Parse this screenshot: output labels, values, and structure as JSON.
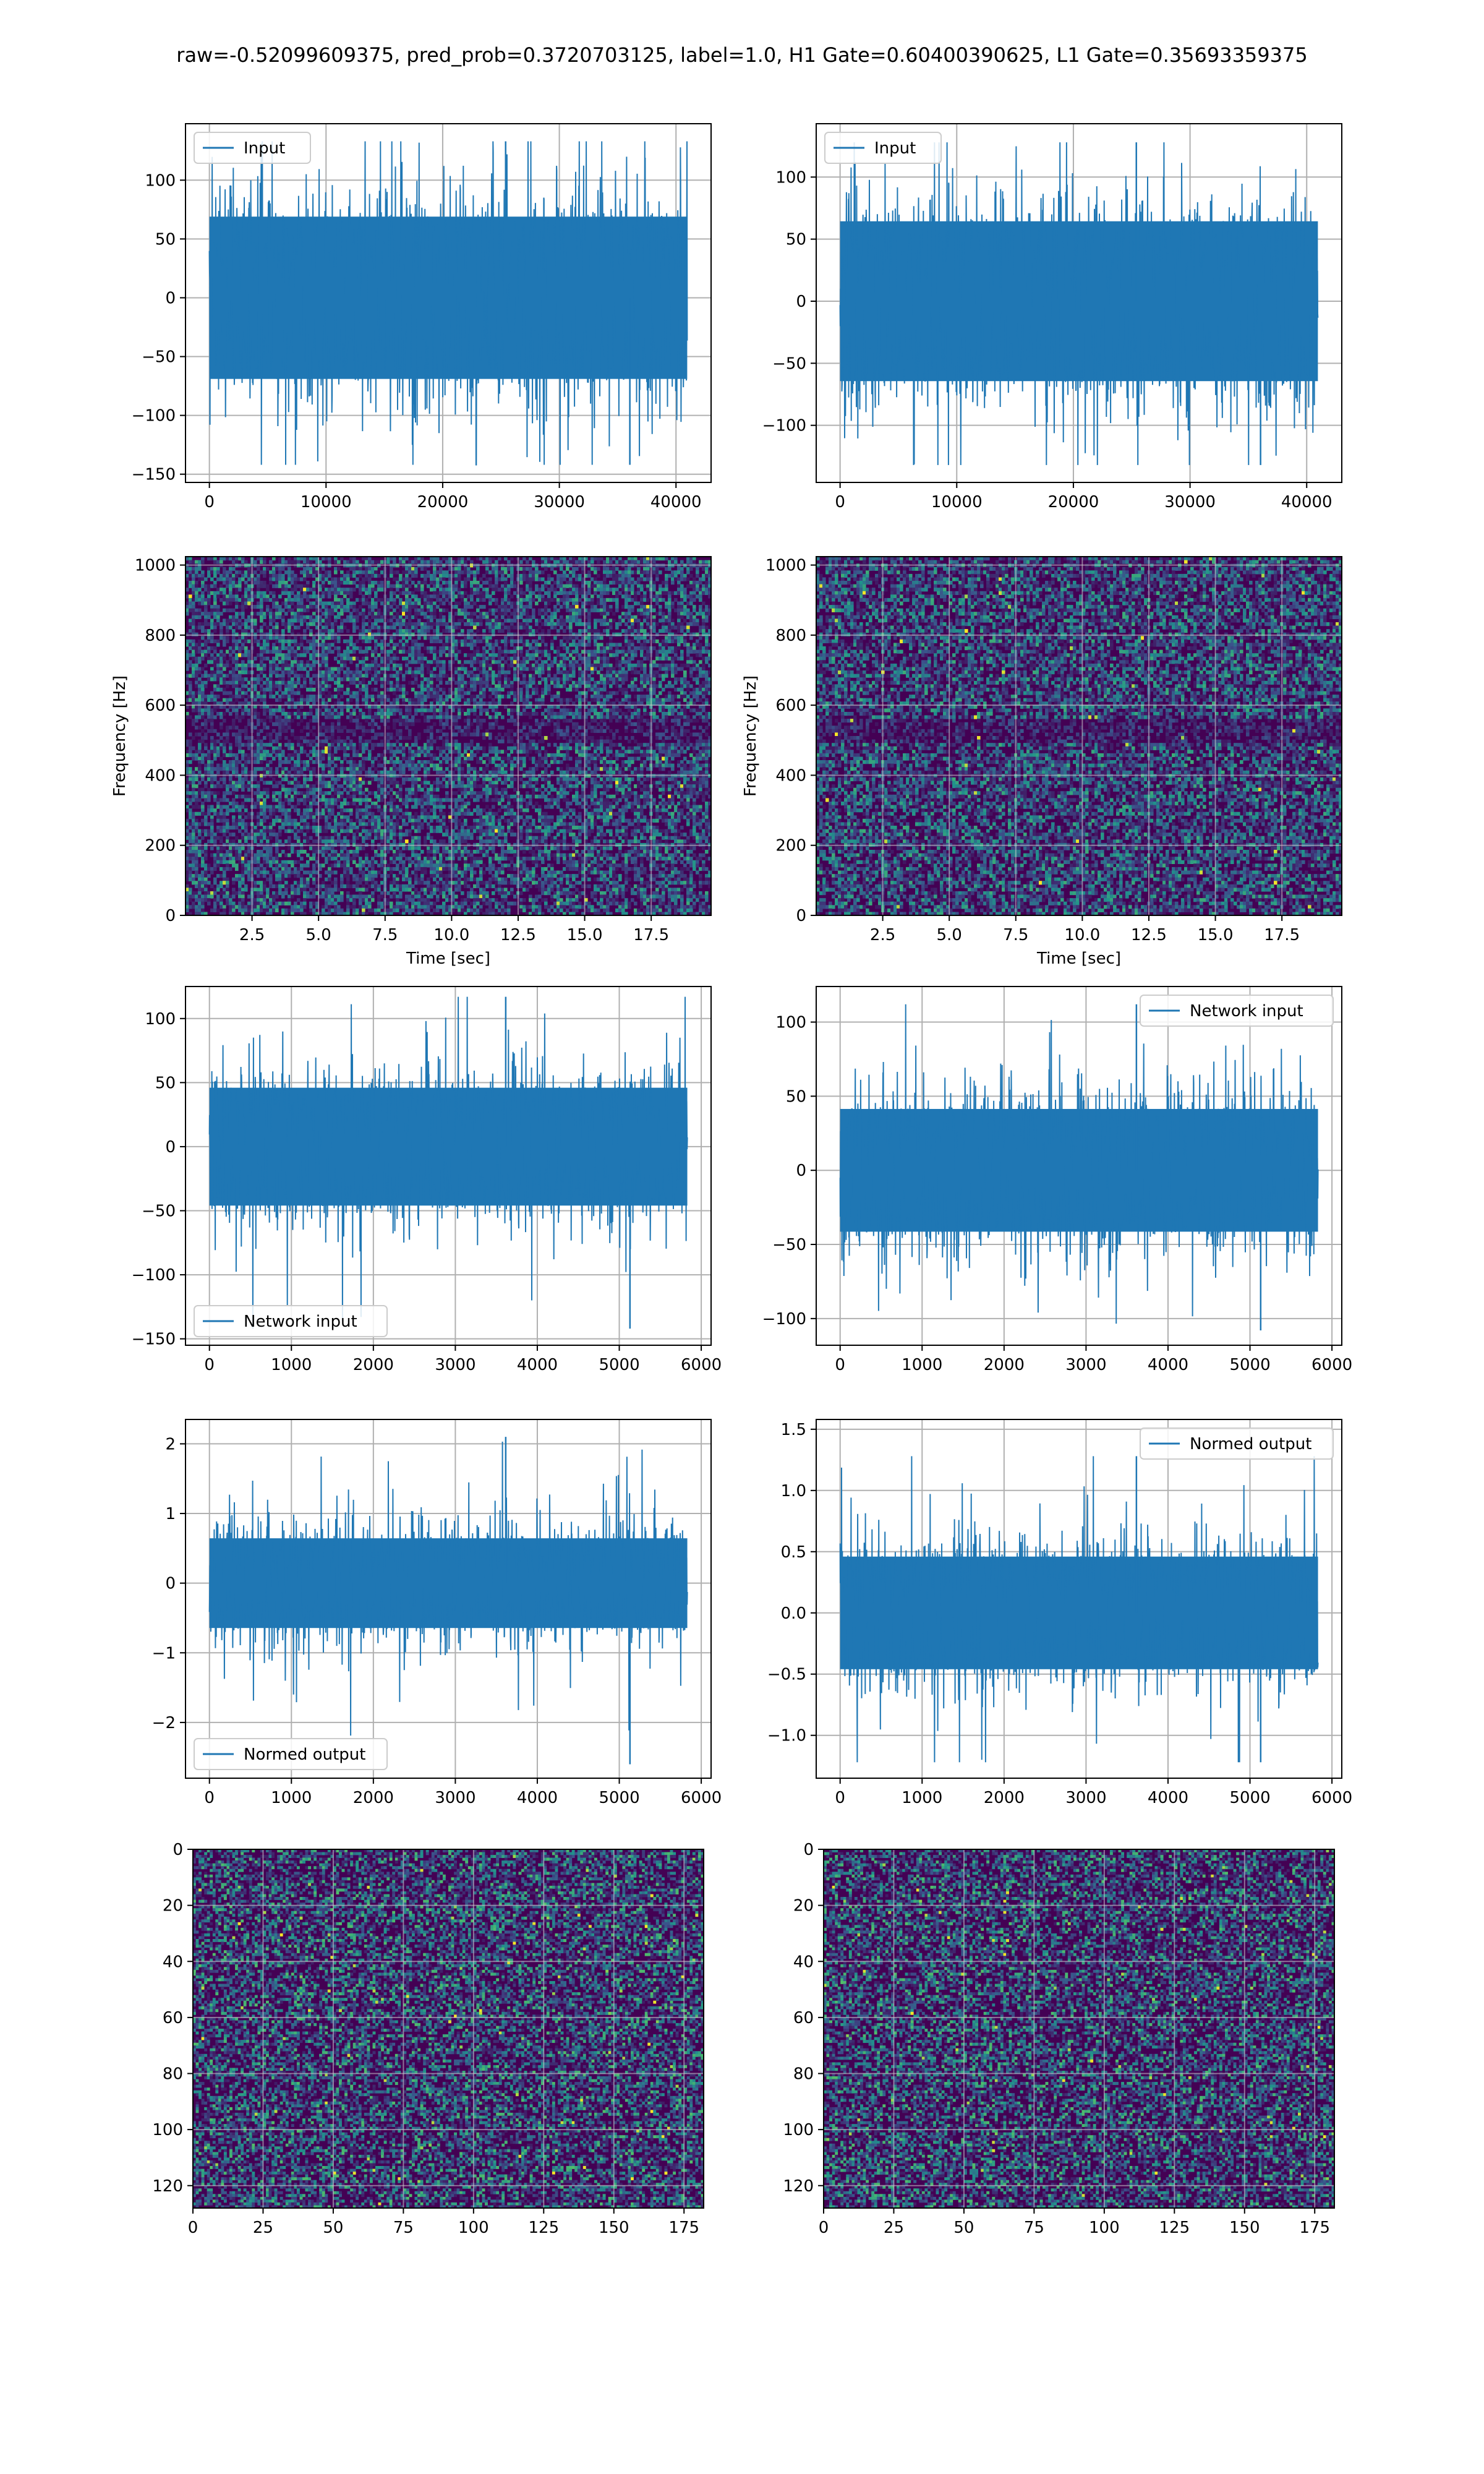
{
  "suptitle": "raw=-0.52099609375, pred_prob=0.3720703125, label=1.0, H1 Gate=0.60400390625, L1 Gate=0.35693359375",
  "colors": {
    "line": "#1f77b4",
    "grid": "#b0b0b0",
    "viridis": [
      "#440154",
      "#3b528b",
      "#21918c",
      "#5ec962",
      "#fde725"
    ]
  },
  "chart_data": [
    {
      "id": "r1c1",
      "type": "line",
      "title": "",
      "xlabel": "",
      "ylabel": "",
      "x_range": [
        0,
        40960
      ],
      "xlim": [
        -2048,
        43008
      ],
      "ylim": [
        -157,
        148
      ],
      "xticks": [
        0,
        10000,
        20000,
        30000,
        40000
      ],
      "yticks": [
        -150,
        -100,
        -50,
        0,
        50,
        100
      ],
      "series": [
        {
          "name": "Input",
          "amplitude_band": [
            -75,
            75
          ],
          "spike_extremes": [
            -142,
            133
          ]
        }
      ],
      "legend": {
        "position": "upper-left",
        "label": "Input"
      },
      "grid": true
    },
    {
      "id": "r1c2",
      "type": "line",
      "title": "",
      "xlabel": "",
      "ylabel": "",
      "x_range": [
        0,
        40960
      ],
      "xlim": [
        -2048,
        43008
      ],
      "ylim": [
        -146,
        143
      ],
      "xticks": [
        0,
        10000,
        20000,
        30000,
        40000
      ],
      "yticks": [
        -100,
        -50,
        0,
        50,
        100
      ],
      "series": [
        {
          "name": "Input",
          "amplitude_band": [
            -70,
            70
          ],
          "spike_extremes": [
            -132,
            128
          ]
        }
      ],
      "legend": {
        "position": "upper-left",
        "label": "Input"
      },
      "grid": true
    },
    {
      "id": "r2c1",
      "type": "heatmap",
      "title": "",
      "xlabel": "Time [sec]",
      "ylabel": "Frequency [Hz]",
      "xlim": [
        0,
        19.75
      ],
      "ylim": [
        0,
        1024
      ],
      "xticks": [
        2.5,
        5.0,
        7.5,
        10.0,
        12.5,
        15.0,
        17.5
      ],
      "yticks": [
        0,
        200,
        400,
        600,
        800,
        1000
      ],
      "colormap": "viridis",
      "grid": true
    },
    {
      "id": "r2c2",
      "type": "heatmap",
      "title": "",
      "xlabel": "Time [sec]",
      "ylabel": "Frequency [Hz]",
      "xlim": [
        0,
        19.75
      ],
      "ylim": [
        0,
        1024
      ],
      "xticks": [
        2.5,
        5.0,
        7.5,
        10.0,
        12.5,
        15.0,
        17.5
      ],
      "yticks": [
        0,
        200,
        400,
        600,
        800,
        1000
      ],
      "colormap": "viridis",
      "grid": true
    },
    {
      "id": "r3c1",
      "type": "line",
      "title": "",
      "xlabel": "",
      "ylabel": "",
      "x_range": [
        0,
        5830
      ],
      "xlim": [
        -292,
        6120
      ],
      "ylim": [
        -155,
        125
      ],
      "xticks": [
        0,
        1000,
        2000,
        3000,
        4000,
        5000,
        6000
      ],
      "yticks": [
        -150,
        -100,
        -50,
        0,
        50,
        100
      ],
      "series": [
        {
          "name": "Network input",
          "amplitude_band": [
            -50,
            50
          ],
          "spike_extremes": [
            -142,
            117
          ]
        }
      ],
      "legend": {
        "position": "lower-left",
        "label": "Network input"
      },
      "grid": true
    },
    {
      "id": "r3c2",
      "type": "line",
      "title": "",
      "xlabel": "",
      "ylabel": "",
      "x_range": [
        0,
        5830
      ],
      "xlim": [
        -292,
        6120
      ],
      "ylim": [
        -118,
        124
      ],
      "xticks": [
        0,
        1000,
        2000,
        3000,
        4000,
        5000,
        6000
      ],
      "yticks": [
        -100,
        -50,
        0,
        50,
        100
      ],
      "series": [
        {
          "name": "Network input",
          "amplitude_band": [
            -45,
            45
          ],
          "spike_extremes": [
            -108,
            112
          ]
        }
      ],
      "legend": {
        "position": "upper-right",
        "label": "Network input"
      },
      "grid": true
    },
    {
      "id": "r4c1",
      "type": "line",
      "title": "",
      "xlabel": "",
      "ylabel": "",
      "x_range": [
        0,
        5830
      ],
      "xlim": [
        -292,
        6120
      ],
      "ylim": [
        -2.8,
        2.35
      ],
      "xticks": [
        0,
        1000,
        2000,
        3000,
        4000,
        5000,
        6000
      ],
      "yticks": [
        -2,
        -1,
        0,
        1,
        2
      ],
      "series": [
        {
          "name": "Normed output",
          "amplitude_band": [
            -0.7,
            0.7
          ],
          "spike_extremes": [
            -2.6,
            2.1
          ]
        }
      ],
      "legend": {
        "position": "lower-left",
        "label": "Normed output"
      },
      "grid": true
    },
    {
      "id": "r4c2",
      "type": "line",
      "title": "",
      "xlabel": "",
      "ylabel": "",
      "x_range": [
        0,
        5830
      ],
      "xlim": [
        -292,
        6120
      ],
      "ylim": [
        -1.35,
        1.58
      ],
      "xticks": [
        0,
        1000,
        2000,
        3000,
        4000,
        5000,
        6000
      ],
      "yticks": [
        -1.0,
        -0.5,
        0.0,
        0.5,
        1.0,
        1.5
      ],
      "series": [
        {
          "name": "Normed output",
          "amplitude_band": [
            -0.5,
            0.5
          ],
          "spike_extremes": [
            -1.22,
            1.28
          ]
        }
      ],
      "legend": {
        "position": "upper-right",
        "label": "Normed output"
      },
      "grid": true
    },
    {
      "id": "r5c1",
      "type": "heatmap",
      "title": "",
      "xlabel": "",
      "ylabel": "",
      "xlim": [
        0,
        182
      ],
      "ylim": [
        128,
        0
      ],
      "xticks": [
        0,
        25,
        50,
        75,
        100,
        125,
        150,
        175
      ],
      "yticks": [
        0,
        20,
        40,
        60,
        80,
        100,
        120
      ],
      "colormap": "viridis",
      "grid": true
    },
    {
      "id": "r5c2",
      "type": "heatmap",
      "title": "",
      "xlabel": "",
      "ylabel": "",
      "xlim": [
        0,
        182
      ],
      "ylim": [
        128,
        0
      ],
      "xticks": [
        0,
        25,
        50,
        75,
        100,
        125,
        150,
        175
      ],
      "yticks": [
        0,
        20,
        40,
        60,
        80,
        100,
        120
      ],
      "colormap": "viridis",
      "grid": true
    }
  ]
}
